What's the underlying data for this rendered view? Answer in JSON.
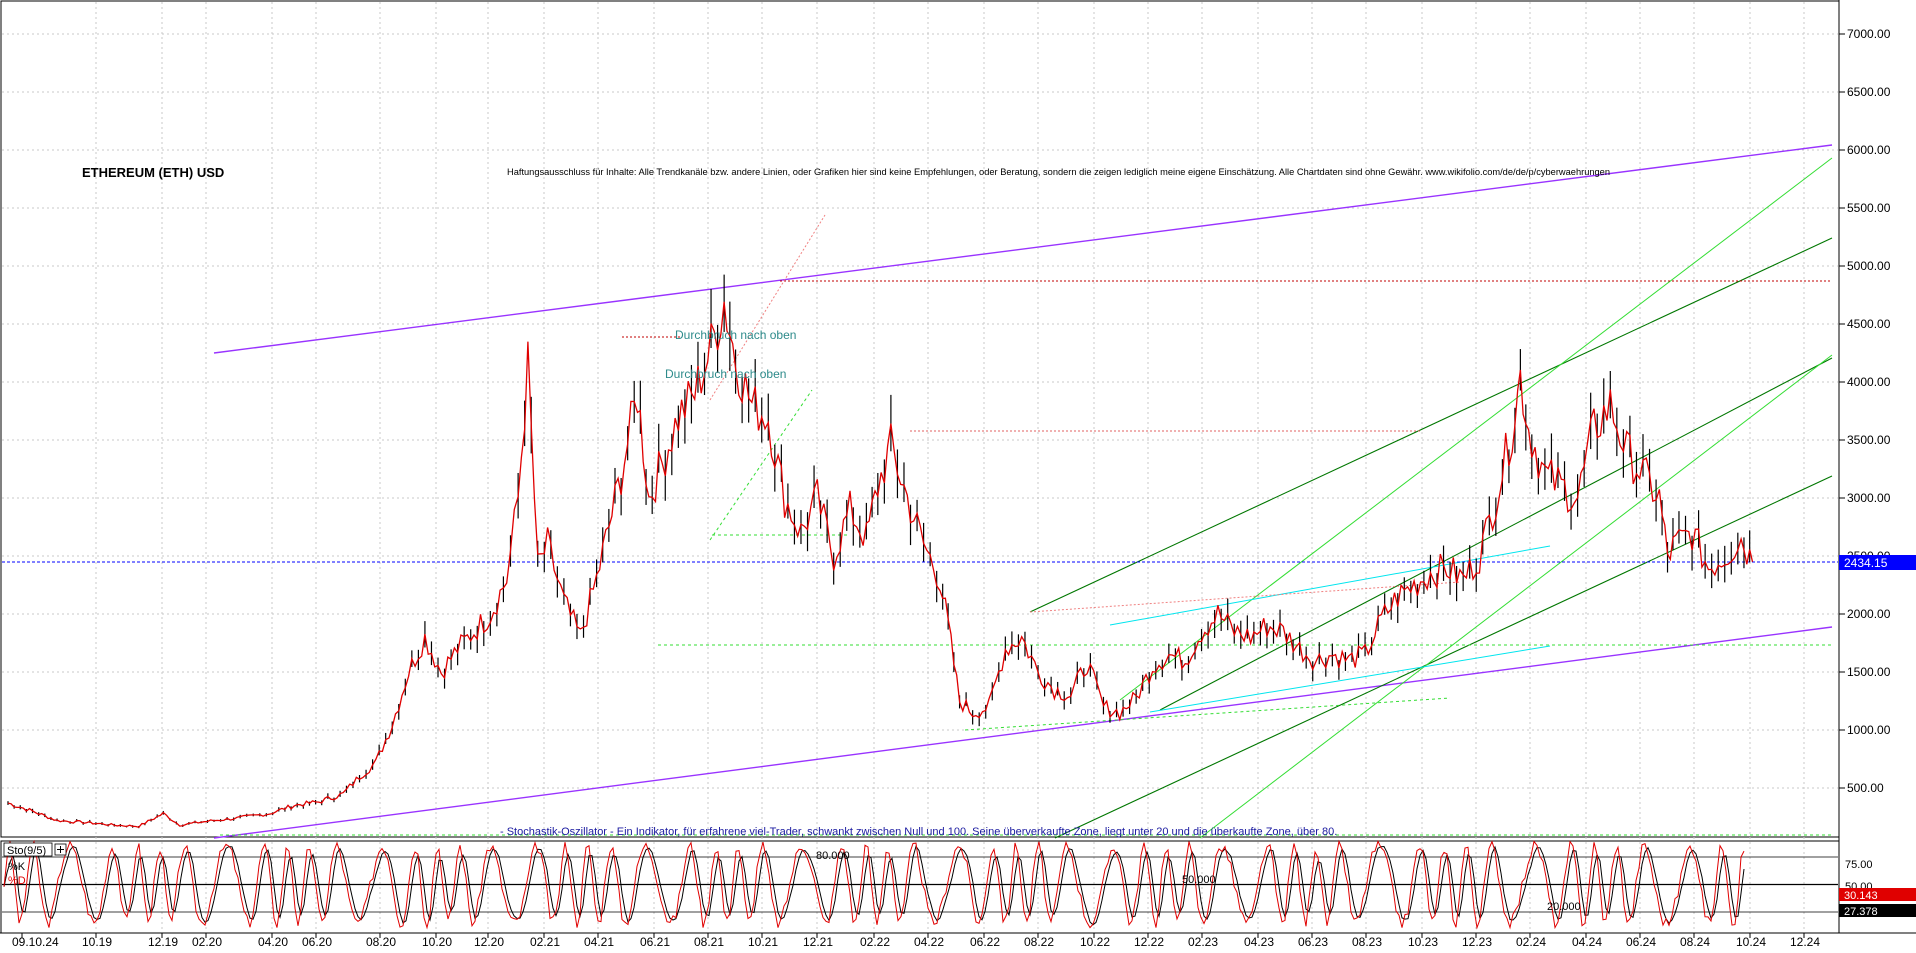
{
  "chart_data": {
    "type": "line",
    "title": "ETHEREUM (ETH) USD",
    "disclaimer": "Haftungsausschluss für Inhalte: Alle Trendkanäle bzw. andere Linien, oder Grafiken hier sind keine Empfehlungen, oder Beratung, sondern die zeigen lediglich meine eigene Einschätzung. Alle Chartdaten sind ohne Gewähr. www.wikifolio.com/de/de/p/cyberwaehrungen",
    "xlabel": "",
    "ylabel": "",
    "ylim": [
      0,
      7500
    ],
    "grid": true,
    "y_ticks": [
      "7000.00",
      "6500.00",
      "6000.00",
      "5500.00",
      "5000.00",
      "4500.00",
      "4000.00",
      "3500.00",
      "3000.00",
      "2500.00",
      "2000.00",
      "1500.00",
      "1000.00",
      "500.00"
    ],
    "x_ticks": [
      "09.10.24",
      "10.19",
      "12.19",
      "02.20",
      "04.20",
      "06.20",
      "08.20",
      "10.20",
      "12.20",
      "02.21",
      "04.21",
      "06.21",
      "08.21",
      "10.21",
      "12.21",
      "02.22",
      "04.22",
      "06.22",
      "08.22",
      "10.22",
      "12.22",
      "02.23",
      "04.23",
      "06.23",
      "08.23",
      "10.23",
      "12.23",
      "02.24",
      "04.24",
      "06.24",
      "08.24",
      "10.24",
      "12.24"
    ],
    "current_price_label": "2434.15",
    "current_price": 2434.15,
    "resistance_level": 4870,
    "support_levels": [
      1720,
      3600
    ],
    "annotations": [
      "Durchbruch nach oben",
      "Durchbruch nach oben"
    ],
    "price_path": [
      [
        0,
        370
      ],
      [
        1.5,
        300
      ],
      [
        3,
        220
      ],
      [
        5,
        200
      ],
      [
        6.5,
        180
      ],
      [
        8,
        170
      ],
      [
        9.5,
        280
      ],
      [
        10.5,
        180
      ],
      [
        12,
        210
      ],
      [
        14,
        240
      ],
      [
        16,
        280
      ],
      [
        17.5,
        350
      ],
      [
        19,
        380
      ],
      [
        20.5,
        450
      ],
      [
        21.5,
        600
      ],
      [
        22.5,
        720
      ],
      [
        23.5,
        1050
      ],
      [
        24.5,
        1500
      ],
      [
        25.5,
        1800
      ],
      [
        26.5,
        1500
      ],
      [
        27.5,
        1700
      ],
      [
        28.5,
        1850
      ],
      [
        29.5,
        2000
      ],
      [
        30.5,
        2300
      ],
      [
        31.2,
        3000
      ],
      [
        31.8,
        4150
      ],
      [
        32.4,
        2400
      ],
      [
        33,
        2600
      ],
      [
        34,
        2100
      ],
      [
        35,
        1800
      ],
      [
        36,
        2300
      ],
      [
        37.5,
        3200
      ],
      [
        38.5,
        3900
      ],
      [
        39.2,
        3000
      ],
      [
        40,
        3300
      ],
      [
        41,
        3700
      ],
      [
        42,
        3900
      ],
      [
        43,
        4300
      ],
      [
        43.8,
        4700
      ],
      [
        44.5,
        4200
      ],
      [
        45.5,
        3800
      ],
      [
        46.5,
        3700
      ],
      [
        47.5,
        3000
      ],
      [
        48.5,
        2700
      ],
      [
        49.5,
        3000
      ],
      [
        50.5,
        2500
      ],
      [
        51.5,
        2900
      ],
      [
        52.5,
        2650
      ],
      [
        53.2,
        3100
      ],
      [
        54,
        3450
      ],
      [
        55,
        3000
      ],
      [
        56,
        2600
      ],
      [
        57,
        2300
      ],
      [
        57.5,
        1900
      ],
      [
        58.2,
        1250
      ],
      [
        59,
        1150
      ],
      [
        60,
        1200
      ],
      [
        61,
        1700
      ],
      [
        62,
        1800
      ],
      [
        63,
        1500
      ],
      [
        64,
        1350
      ],
      [
        65,
        1300
      ],
      [
        66,
        1580
      ],
      [
        67,
        1200
      ],
      [
        68,
        1150
      ],
      [
        69,
        1280
      ],
      [
        70,
        1550
      ],
      [
        71,
        1650
      ],
      [
        72,
        1600
      ],
      [
        73,
        1850
      ],
      [
        74,
        2000
      ],
      [
        75,
        1850
      ],
      [
        76,
        1800
      ],
      [
        77,
        1900
      ],
      [
        78,
        1850
      ],
      [
        79,
        1700
      ],
      [
        80,
        1600
      ],
      [
        81,
        1650
      ],
      [
        82,
        1600
      ],
      [
        83,
        1650
      ],
      [
        84,
        1950
      ],
      [
        85,
        2150
      ],
      [
        86,
        2250
      ],
      [
        87,
        2350
      ],
      [
        88,
        2400
      ],
      [
        89,
        2300
      ],
      [
        90,
        2500
      ],
      [
        91,
        3000
      ],
      [
        92,
        3600
      ],
      [
        92.5,
        4050
      ],
      [
        93,
        3600
      ],
      [
        94,
        3200
      ],
      [
        95,
        3100
      ],
      [
        96,
        3000
      ],
      [
        97,
        3600
      ],
      [
        98,
        3800
      ],
      [
        99,
        3400
      ],
      [
        100,
        3200
      ],
      [
        101,
        3000
      ],
      [
        101.5,
        2500
      ],
      [
        102,
        2600
      ],
      [
        103,
        2700
      ],
      [
        104,
        2400
      ],
      [
        105,
        2500
      ],
      [
        106,
        2650
      ],
      [
        106.7,
        2450
      ]
    ],
    "stochastic": {
      "label": "Sto(9/5)",
      "k_label": "%K",
      "d_label": "%D",
      "levels": [
        "80.000",
        "50.000",
        "20.000"
      ],
      "axis_ticks": [
        "75.00",
        "50.00",
        "25.00"
      ],
      "k_value": "30.143",
      "d_value": "27.378",
      "description": "- Stochastik-Oszillator - Ein Indikator, für erfahrene viel-Trader, schwankt zwischen Null und 100. Seine überverkaufte Zone, liegt unter 20 und die überkaufte Zone, über 80."
    },
    "colors": {
      "price_line": "#e00000",
      "candle": "#000000",
      "channel": "#9933ff",
      "trend_dark": "#007700",
      "trend_light": "#33dd33",
      "cyan": "#00e5ee",
      "current_price_box": "#0000ff",
      "stoch_k": "#e00000",
      "stoch_d": "#000000"
    }
  }
}
